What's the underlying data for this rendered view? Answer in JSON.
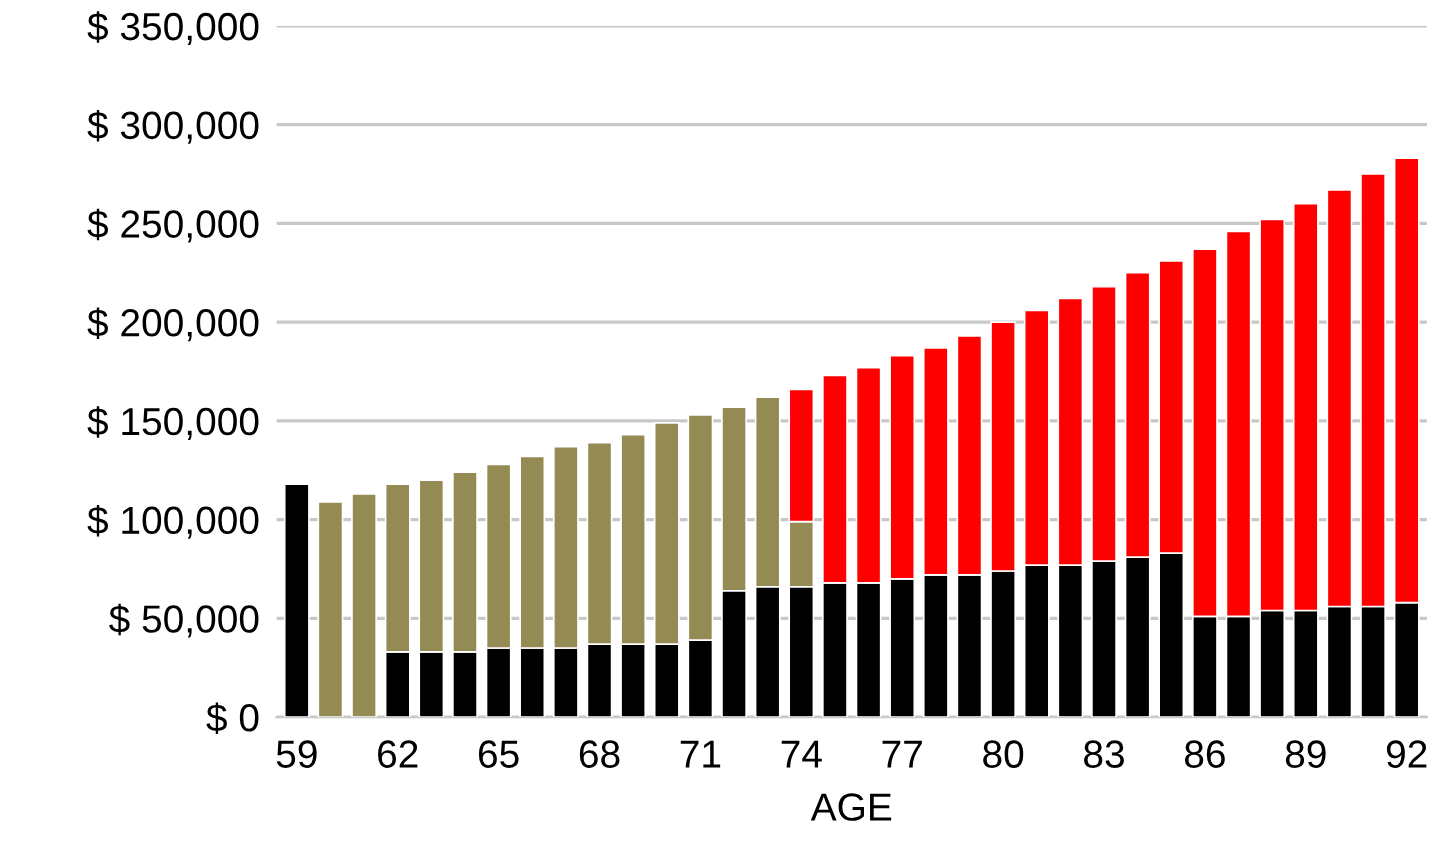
{
  "chart_data": {
    "type": "bar",
    "stacked": true,
    "xlabel": "AGE",
    "categories": [
      "59",
      null,
      null,
      "62",
      null,
      null,
      "65",
      null,
      null,
      "68",
      null,
      null,
      "71",
      null,
      null,
      "74",
      null,
      null,
      "77",
      null,
      null,
      "80",
      null,
      null,
      "83",
      null,
      null,
      "86",
      null,
      null,
      "89",
      null,
      null,
      "92"
    ],
    "series": [
      {
        "color": "#000000",
        "values": [
          118000,
          null,
          null,
          33000,
          33000,
          33000,
          35000,
          35000,
          35000,
          37000,
          37000,
          37000,
          39000,
          64000,
          66000,
          66000,
          68000,
          68000,
          70000,
          72000,
          72000,
          74000,
          77000,
          77000,
          79000,
          81000,
          83000,
          51000,
          51000,
          54000,
          54000,
          56000,
          56000,
          58000
        ]
      },
      {
        "color": "#948a54",
        "values": [
          null,
          109000,
          113000,
          85000,
          87000,
          91000,
          93000,
          97000,
          102000,
          102000,
          106000,
          112000,
          114000,
          93000,
          96000,
          33000,
          null,
          null,
          null,
          null,
          null,
          null,
          null,
          null,
          null,
          null,
          null,
          null,
          null,
          null,
          null,
          null,
          null,
          null
        ]
      },
      {
        "color": "#ff0000",
        "values": [
          null,
          null,
          null,
          null,
          null,
          null,
          null,
          null,
          null,
          null,
          null,
          null,
          null,
          null,
          null,
          67000,
          105000,
          109000,
          113000,
          115000,
          121000,
          126000,
          129000,
          135000,
          139000,
          144000,
          148000,
          186000,
          195000,
          198000,
          206000,
          211000,
          219000,
          225000
        ]
      }
    ],
    "ylim": [
      0,
      350000
    ],
    "yticks": [
      {
        "value": 0,
        "label": "$ 0"
      },
      {
        "value": 50000,
        "label": "$ 50,000"
      },
      {
        "value": 100000,
        "label": "$ 100,000"
      },
      {
        "value": 150000,
        "label": "$ 150,000"
      },
      {
        "value": 200000,
        "label": "$ 200,000"
      },
      {
        "value": 250000,
        "label": "$ 250,000"
      },
      {
        "value": 300000,
        "label": "$ 300,000"
      },
      {
        "value": 350000,
        "label": "$ 350,000"
      }
    ],
    "grid": "y"
  }
}
